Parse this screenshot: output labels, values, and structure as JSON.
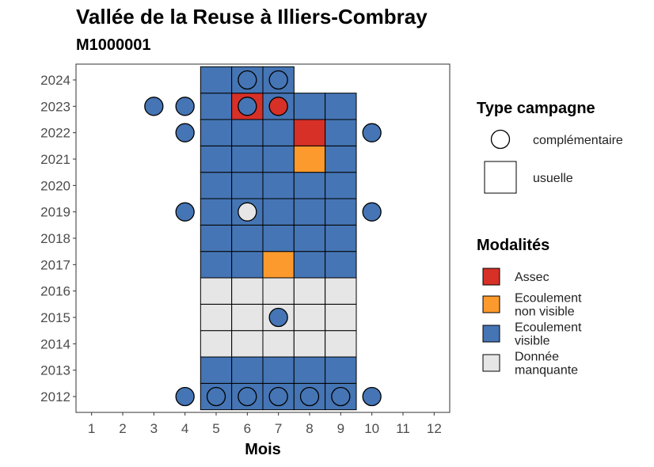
{
  "chart_data": {
    "type": "heatmap",
    "title": "Vallée de la Reuse à Illiers-Combray",
    "subtitle": "M1000001",
    "xlabel": "Mois",
    "ylabel": "",
    "x_ticks": [
      "1",
      "2",
      "3",
      "4",
      "5",
      "6",
      "7",
      "8",
      "9",
      "10",
      "11",
      "12"
    ],
    "y_ticks": [
      "2012",
      "2013",
      "2014",
      "2015",
      "2016",
      "2017",
      "2018",
      "2019",
      "2020",
      "2021",
      "2022",
      "2023",
      "2024"
    ],
    "x_range": [
      0.5,
      12.5
    ],
    "y_range": [
      2011.4,
      2024.6
    ],
    "grid": false,
    "legend_position": "right",
    "colors": {
      "Assec": "#d73027",
      "Ecoulement non visible": "#fd9a2d",
      "Ecoulement visible": "#4575b4",
      "Donnée manquante": "#e6e6e6"
    },
    "legend_shape": {
      "title": "Type campagne",
      "items": [
        {
          "label": "complémentaire",
          "shape": "circle"
        },
        {
          "label": "usuelle",
          "shape": "square"
        }
      ]
    },
    "legend_fill": {
      "title": "Modalités",
      "items": [
        {
          "key": "Assec",
          "lines": [
            "Assec"
          ]
        },
        {
          "key": "Ecoulement non visible",
          "lines": [
            "Ecoulement",
            "non visible"
          ]
        },
        {
          "key": "Ecoulement visible",
          "lines": [
            "Ecoulement",
            "visible"
          ]
        },
        {
          "key": "Donnée manquante",
          "lines": [
            "Donnée",
            "manquante"
          ]
        }
      ]
    },
    "usuelle": [
      {
        "year": 2012,
        "month": 5,
        "value": "Ecoulement visible"
      },
      {
        "year": 2012,
        "month": 6,
        "value": "Ecoulement visible"
      },
      {
        "year": 2012,
        "month": 7,
        "value": "Ecoulement visible"
      },
      {
        "year": 2012,
        "month": 8,
        "value": "Ecoulement visible"
      },
      {
        "year": 2012,
        "month": 9,
        "value": "Ecoulement visible"
      },
      {
        "year": 2013,
        "month": 5,
        "value": "Ecoulement visible"
      },
      {
        "year": 2013,
        "month": 6,
        "value": "Ecoulement visible"
      },
      {
        "year": 2013,
        "month": 7,
        "value": "Ecoulement visible"
      },
      {
        "year": 2013,
        "month": 8,
        "value": "Ecoulement visible"
      },
      {
        "year": 2013,
        "month": 9,
        "value": "Ecoulement visible"
      },
      {
        "year": 2014,
        "month": 5,
        "value": "Donnée manquante"
      },
      {
        "year": 2014,
        "month": 6,
        "value": "Donnée manquante"
      },
      {
        "year": 2014,
        "month": 7,
        "value": "Donnée manquante"
      },
      {
        "year": 2014,
        "month": 8,
        "value": "Donnée manquante"
      },
      {
        "year": 2014,
        "month": 9,
        "value": "Donnée manquante"
      },
      {
        "year": 2015,
        "month": 5,
        "value": "Donnée manquante"
      },
      {
        "year": 2015,
        "month": 6,
        "value": "Donnée manquante"
      },
      {
        "year": 2015,
        "month": 7,
        "value": "Donnée manquante"
      },
      {
        "year": 2015,
        "month": 8,
        "value": "Donnée manquante"
      },
      {
        "year": 2015,
        "month": 9,
        "value": "Donnée manquante"
      },
      {
        "year": 2016,
        "month": 5,
        "value": "Donnée manquante"
      },
      {
        "year": 2016,
        "month": 6,
        "value": "Donnée manquante"
      },
      {
        "year": 2016,
        "month": 7,
        "value": "Donnée manquante"
      },
      {
        "year": 2016,
        "month": 8,
        "value": "Donnée manquante"
      },
      {
        "year": 2016,
        "month": 9,
        "value": "Donnée manquante"
      },
      {
        "year": 2017,
        "month": 5,
        "value": "Ecoulement visible"
      },
      {
        "year": 2017,
        "month": 6,
        "value": "Ecoulement visible"
      },
      {
        "year": 2017,
        "month": 7,
        "value": "Ecoulement non visible"
      },
      {
        "year": 2017,
        "month": 8,
        "value": "Ecoulement visible"
      },
      {
        "year": 2017,
        "month": 9,
        "value": "Ecoulement visible"
      },
      {
        "year": 2018,
        "month": 5,
        "value": "Ecoulement visible"
      },
      {
        "year": 2018,
        "month": 6,
        "value": "Ecoulement visible"
      },
      {
        "year": 2018,
        "month": 7,
        "value": "Ecoulement visible"
      },
      {
        "year": 2018,
        "month": 8,
        "value": "Ecoulement visible"
      },
      {
        "year": 2018,
        "month": 9,
        "value": "Ecoulement visible"
      },
      {
        "year": 2019,
        "month": 5,
        "value": "Ecoulement visible"
      },
      {
        "year": 2019,
        "month": 6,
        "value": "Ecoulement visible"
      },
      {
        "year": 2019,
        "month": 7,
        "value": "Ecoulement visible"
      },
      {
        "year": 2019,
        "month": 8,
        "value": "Ecoulement visible"
      },
      {
        "year": 2019,
        "month": 9,
        "value": "Ecoulement visible"
      },
      {
        "year": 2020,
        "month": 5,
        "value": "Ecoulement visible"
      },
      {
        "year": 2020,
        "month": 6,
        "value": "Ecoulement visible"
      },
      {
        "year": 2020,
        "month": 7,
        "value": "Ecoulement visible"
      },
      {
        "year": 2020,
        "month": 8,
        "value": "Ecoulement visible"
      },
      {
        "year": 2020,
        "month": 9,
        "value": "Ecoulement visible"
      },
      {
        "year": 2021,
        "month": 5,
        "value": "Ecoulement visible"
      },
      {
        "year": 2021,
        "month": 6,
        "value": "Ecoulement visible"
      },
      {
        "year": 2021,
        "month": 7,
        "value": "Ecoulement visible"
      },
      {
        "year": 2021,
        "month": 8,
        "value": "Ecoulement non visible"
      },
      {
        "year": 2021,
        "month": 9,
        "value": "Ecoulement visible"
      },
      {
        "year": 2022,
        "month": 5,
        "value": "Ecoulement visible"
      },
      {
        "year": 2022,
        "month": 6,
        "value": "Ecoulement visible"
      },
      {
        "year": 2022,
        "month": 7,
        "value": "Ecoulement visible"
      },
      {
        "year": 2022,
        "month": 8,
        "value": "Assec"
      },
      {
        "year": 2022,
        "month": 9,
        "value": "Ecoulement visible"
      },
      {
        "year": 2023,
        "month": 5,
        "value": "Ecoulement visible"
      },
      {
        "year": 2023,
        "month": 6,
        "value": "Assec"
      },
      {
        "year": 2023,
        "month": 7,
        "value": "Ecoulement visible"
      },
      {
        "year": 2023,
        "month": 8,
        "value": "Ecoulement visible"
      },
      {
        "year": 2023,
        "month": 9,
        "value": "Ecoulement visible"
      },
      {
        "year": 2024,
        "month": 5,
        "value": "Ecoulement visible"
      },
      {
        "year": 2024,
        "month": 6,
        "value": "Ecoulement visible"
      },
      {
        "year": 2024,
        "month": 7,
        "value": "Ecoulement visible"
      }
    ],
    "complementaire": [
      {
        "year": 2012,
        "month": 4,
        "value": "Ecoulement visible"
      },
      {
        "year": 2012,
        "month": 5,
        "value": "Ecoulement visible"
      },
      {
        "year": 2012,
        "month": 6,
        "value": "Ecoulement visible"
      },
      {
        "year": 2012,
        "month": 7,
        "value": "Ecoulement visible"
      },
      {
        "year": 2012,
        "month": 8,
        "value": "Ecoulement visible"
      },
      {
        "year": 2012,
        "month": 9,
        "value": "Ecoulement visible"
      },
      {
        "year": 2012,
        "month": 10,
        "value": "Ecoulement visible"
      },
      {
        "year": 2015,
        "month": 7,
        "value": "Ecoulement visible"
      },
      {
        "year": 2019,
        "month": 4,
        "value": "Ecoulement visible"
      },
      {
        "year": 2019,
        "month": 6,
        "value": "Donnée manquante"
      },
      {
        "year": 2019,
        "month": 10,
        "value": "Ecoulement visible"
      },
      {
        "year": 2022,
        "month": 4,
        "value": "Ecoulement visible"
      },
      {
        "year": 2022,
        "month": 10,
        "value": "Ecoulement visible"
      },
      {
        "year": 2023,
        "month": 3,
        "value": "Ecoulement visible"
      },
      {
        "year": 2023,
        "month": 4,
        "value": "Ecoulement visible"
      },
      {
        "year": 2023,
        "month": 6,
        "value": "Ecoulement visible"
      },
      {
        "year": 2023,
        "month": 7,
        "value": "Assec"
      },
      {
        "year": 2024,
        "month": 6,
        "value": "Ecoulement visible"
      },
      {
        "year": 2024,
        "month": 7,
        "value": "Ecoulement visible"
      }
    ]
  }
}
